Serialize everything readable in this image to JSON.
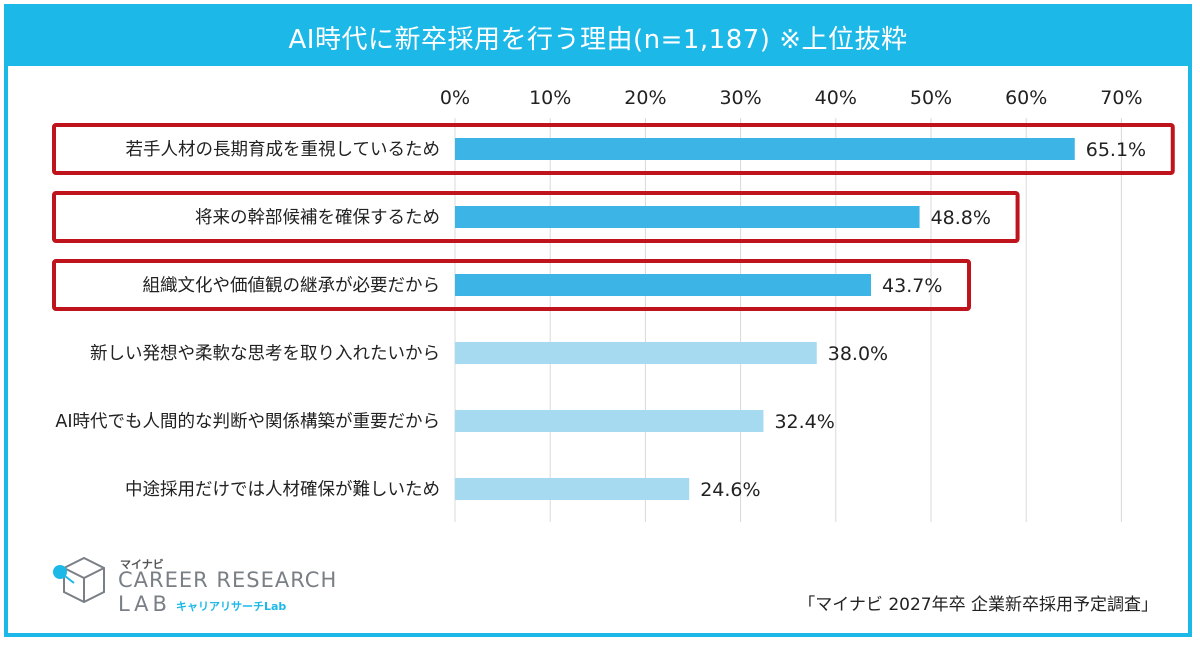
{
  "title": "AI時代に新卒採用を行う理由(n=1,187) ※上位抜粋",
  "chart_data": {
    "type": "bar",
    "orientation": "horizontal",
    "x_ticks": [
      "0%",
      "10%",
      "20%",
      "30%",
      "40%",
      "50%",
      "60%",
      "70%"
    ],
    "xlim": [
      0,
      70
    ],
    "grid": true,
    "categories": [
      "若手人材の長期育成を重視しているため",
      "将来の幹部候補を確保するため",
      "組織文化や価値観の継承が必要だから",
      "新しい発想や柔軟な思考を取り入れたいから",
      "AI時代でも人間的な判断や関係構築が重要だから",
      "中途採用だけでは人材確保が難しいため"
    ],
    "values": [
      65.1,
      48.8,
      43.7,
      38.0,
      32.4,
      24.6
    ],
    "value_labels": [
      "65.1%",
      "48.8%",
      "43.7%",
      "38.0%",
      "32.4%",
      "24.6%"
    ],
    "highlighted": [
      true,
      true,
      true,
      false,
      false,
      false
    ],
    "colors": {
      "bar_highlight": "#3db4e6",
      "bar_normal": "#a6daf0",
      "highlight_box": "#c0141c",
      "frame": "#1cb8e8",
      "grid": "#d9d9d9"
    }
  },
  "logo": {
    "small": "マイナビ",
    "main": "CAREER RESEARCH",
    "lab": "LAB",
    "kana": "キャリアリサーチLab"
  },
  "source": "「マイナビ 2027年卒 企業新卒採用予定調査」"
}
